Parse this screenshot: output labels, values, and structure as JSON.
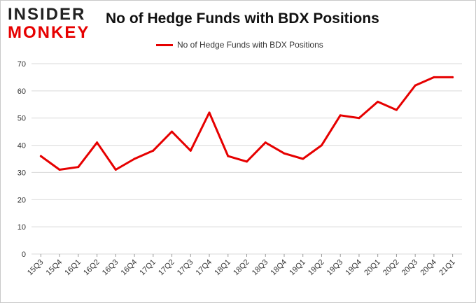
{
  "logo": {
    "line1": "INSIDER",
    "line2": "MONKEY"
  },
  "colors": {
    "series": "#e60000",
    "grid": "#d9d9d9",
    "brand_red": "#e60000"
  },
  "chart_data": {
    "type": "line",
    "title": "No of Hedge Funds with BDX Positions",
    "legend_position": "top-center",
    "grid": true,
    "ylim": [
      0,
      70
    ],
    "yticks": [
      0,
      10,
      20,
      30,
      40,
      50,
      60,
      70
    ],
    "categories": [
      "15Q3",
      "15Q4",
      "16Q1",
      "16Q2",
      "16Q3",
      "16Q4",
      "17Q1",
      "17Q2",
      "17Q3",
      "17Q4",
      "18Q1",
      "18Q2",
      "18Q3",
      "18Q4",
      "19Q1",
      "19Q2",
      "19Q3",
      "19Q4",
      "20Q1",
      "20Q2",
      "20Q3",
      "20Q4",
      "21Q1"
    ],
    "series": [
      {
        "name": "No of Hedge Funds with BDX Positions",
        "values": [
          36,
          31,
          32,
          41,
          31,
          35,
          38,
          45,
          38,
          52,
          36,
          34,
          41,
          37,
          35,
          40,
          51,
          50,
          56,
          53,
          62,
          65,
          65
        ]
      }
    ]
  }
}
